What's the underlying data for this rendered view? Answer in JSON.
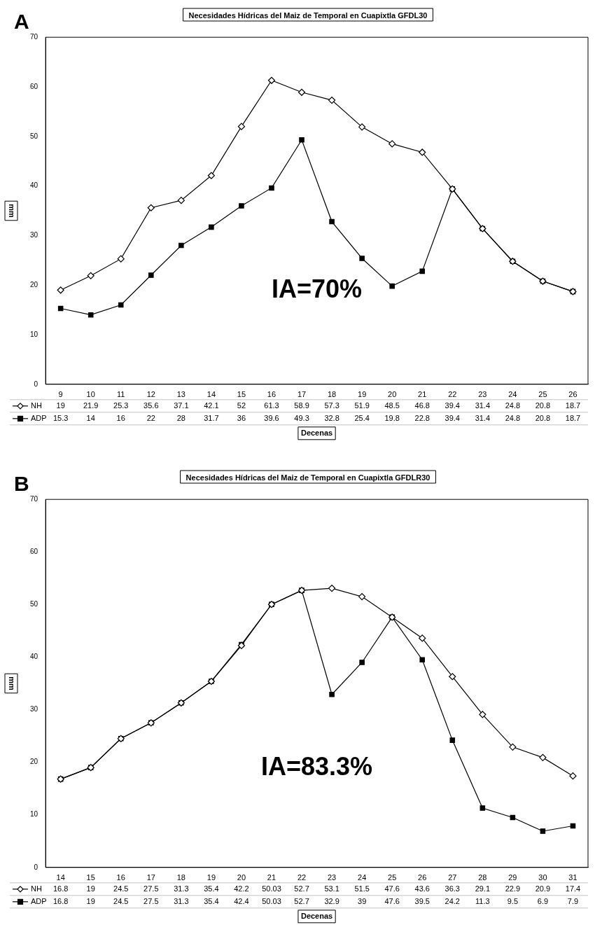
{
  "chart_data": [
    {
      "type": "line",
      "title": "Necesidades Hídricas del Maiz de Temporal en Cuapixtla GFDL30",
      "xlabel": "Decenas",
      "ylabel": "mm",
      "annotations": [
        "A",
        "IA=70%"
      ],
      "categories": [
        "9",
        "10",
        "11",
        "12",
        "13",
        "14",
        "15",
        "16",
        "17",
        "18",
        "19",
        "20",
        "21",
        "22",
        "23",
        "24",
        "25",
        "26"
      ],
      "series": [
        {
          "name": "NH",
          "color": "#000000",
          "marker": "diamond",
          "values": [
            19,
            21.9,
            25.3,
            35.6,
            37.1,
            42.1,
            52,
            61.3,
            58.9,
            57.3,
            51.9,
            48.5,
            46.8,
            39.4,
            31.4,
            24.8,
            20.8,
            18.7
          ]
        },
        {
          "name": "ADP",
          "color": "#000000",
          "marker": "square",
          "values": [
            15.3,
            14,
            16,
            22,
            28,
            31.7,
            36,
            39.6,
            49.3,
            32.8,
            25.4,
            19.8,
            22.8,
            39.4,
            31.4,
            24.8,
            20.8,
            18.7
          ]
        }
      ],
      "ylim": [
        0,
        70
      ],
      "yticks": [
        0,
        10,
        20,
        30,
        40,
        50,
        60,
        70
      ],
      "grid": false,
      "legend": "bottom",
      "data_labels": true
    },
    {
      "type": "line",
      "title": "Necesidades Hídricas del Maiz de Temporal en Cuapixtla GFDLR30",
      "xlabel": "Decenas",
      "ylabel": "mm",
      "annotations": [
        "B",
        "IA=83.3%"
      ],
      "categories": [
        "14",
        "15",
        "16",
        "17",
        "18",
        "19",
        "20",
        "21",
        "22",
        "23",
        "24",
        "25",
        "26",
        "27",
        "28",
        "29",
        "30",
        "31"
      ],
      "series": [
        {
          "name": "NH",
          "color": "#000000",
          "marker": "diamond",
          "values": [
            16.8,
            19,
            24.5,
            27.5,
            31.3,
            35.4,
            42.2,
            50.03,
            52.7,
            53.1,
            51.5,
            47.6,
            43.6,
            36.3,
            29.1,
            22.9,
            20.9,
            17.4
          ]
        },
        {
          "name": "ADP",
          "color": "#000000",
          "marker": "square",
          "values": [
            16.8,
            19,
            24.5,
            27.5,
            31.3,
            35.4,
            42.4,
            50.03,
            52.7,
            32.9,
            39,
            47.6,
            39.5,
            24.2,
            11.3,
            9.5,
            6.9,
            7.9
          ]
        }
      ],
      "ylim": [
        0,
        70
      ],
      "yticks": [
        0,
        10,
        20,
        30,
        40,
        50,
        60,
        70
      ],
      "grid": false,
      "legend": "bottom",
      "data_labels": true
    }
  ]
}
